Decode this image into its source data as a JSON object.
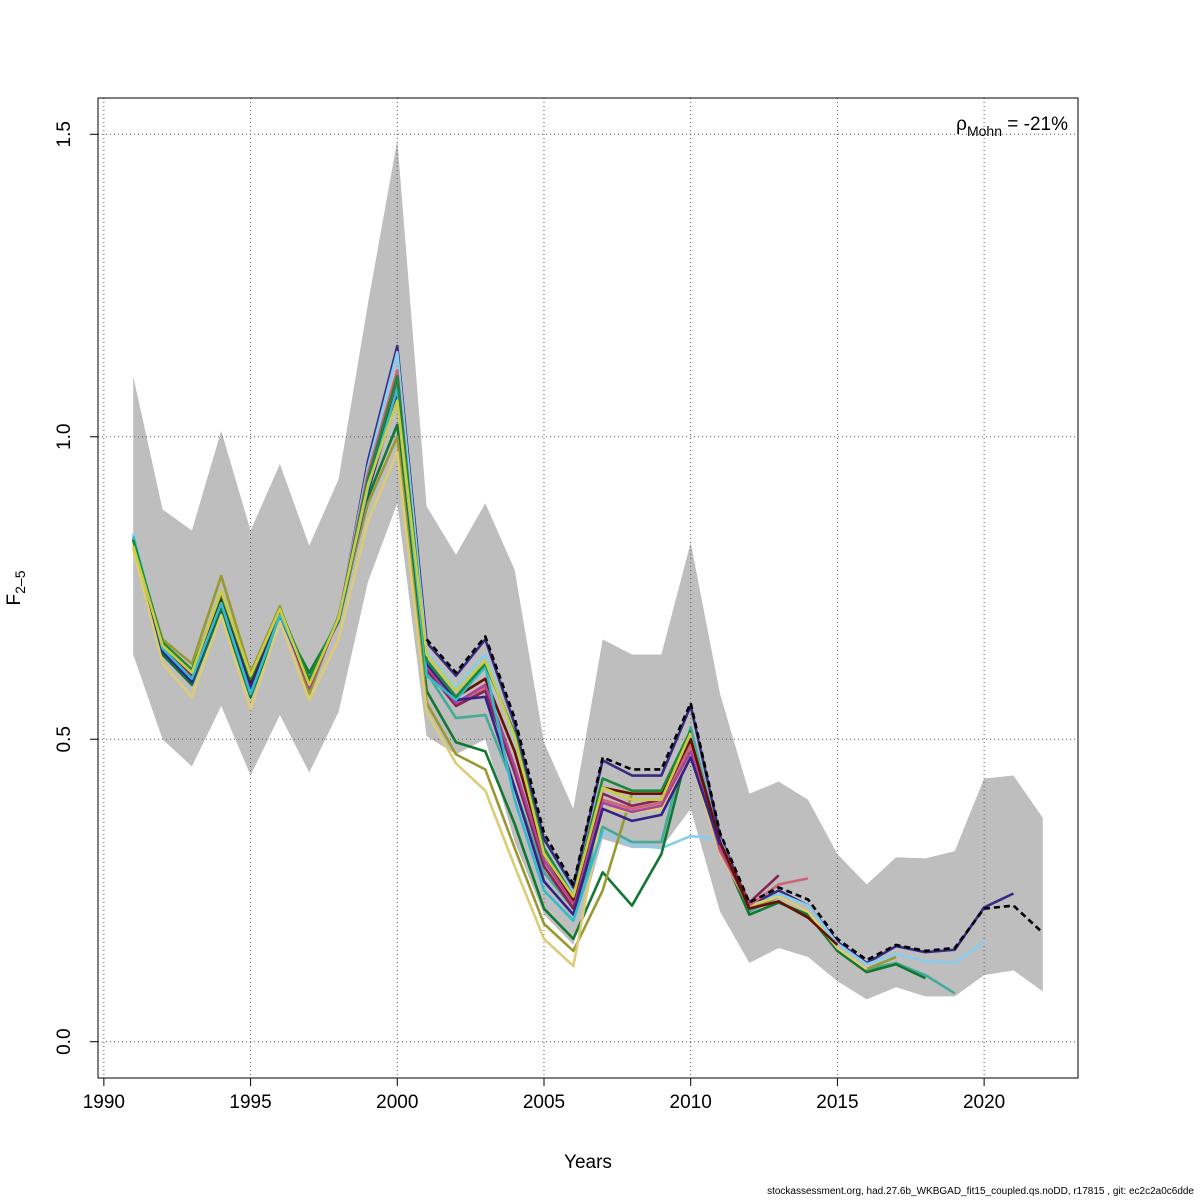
{
  "chart_data": {
    "type": "line",
    "title": "",
    "xlabel": "Years",
    "ylabel_main": "F",
    "ylabel_sub": "2–5",
    "xlim": [
      1989.8,
      2023.2
    ],
    "ylim": [
      -0.06,
      1.56
    ],
    "x_ticks": [
      1990,
      1995,
      2000,
      2005,
      2010,
      2015,
      2020
    ],
    "y_ticks": [
      0.0,
      0.5,
      1.0,
      1.5
    ],
    "y_tick_labels": [
      "0.0",
      "0.5",
      "1.0",
      "1.5"
    ],
    "grid": true,
    "annotation": {
      "symbol": "ρ",
      "subscript": "Mohn",
      "text": " = -21%",
      "position": "top-right"
    },
    "footer": "stockassessment.org, had.27.6b_WKBGAD_fit15_coupled.qs.noDD, r17815 , git: ec2c2a0c6dde",
    "colors": {
      "band": "#bebebe",
      "grid": "#555555",
      "final": "#000000"
    },
    "confidence_band": {
      "x": [
        1991,
        1992,
        1993,
        1994,
        1995,
        1996,
        1997,
        1998,
        1999,
        2000,
        2001,
        2002,
        2003,
        2004,
        2005,
        2006,
        2007,
        2008,
        2009,
        2010,
        2011,
        2012,
        2013,
        2014,
        2015,
        2016,
        2017,
        2018,
        2019,
        2020,
        2021,
        2022
      ],
      "upper": [
        1.1,
        0.88,
        0.845,
        1.01,
        0.845,
        0.955,
        0.82,
        0.93,
        1.22,
        1.49,
        0.885,
        0.805,
        0.89,
        0.78,
        0.495,
        0.385,
        0.665,
        0.64,
        0.64,
        0.825,
        0.575,
        0.41,
        0.43,
        0.4,
        0.31,
        0.26,
        0.305,
        0.303,
        0.315,
        0.435,
        0.44,
        0.37
      ],
      "lower": [
        0.64,
        0.5,
        0.455,
        0.555,
        0.44,
        0.54,
        0.445,
        0.545,
        0.76,
        0.89,
        0.505,
        0.475,
        0.5,
        0.33,
        0.21,
        0.16,
        0.335,
        0.32,
        0.32,
        0.385,
        0.215,
        0.13,
        0.155,
        0.14,
        0.1,
        0.07,
        0.09,
        0.075,
        0.075,
        0.11,
        0.118,
        0.083
      ]
    },
    "series": [
      {
        "color": "#000000",
        "dash": "6,4",
        "x": [
          2001,
          2002,
          2003,
          2004,
          2005,
          2006,
          2007,
          2008,
          2009,
          2010,
          2011,
          2012,
          2013,
          2014,
          2015,
          2016,
          2017,
          2018,
          2019,
          2020,
          2021,
          2022
        ],
        "values": [
          0.665,
          0.61,
          0.67,
          0.535,
          0.345,
          0.26,
          0.47,
          0.45,
          0.45,
          0.56,
          0.345,
          0.23,
          0.255,
          0.235,
          0.17,
          0.135,
          0.16,
          0.15,
          0.155,
          0.22,
          0.225,
          0.18
        ]
      },
      {
        "color": "#362a82",
        "x": [
          1991,
          1992,
          1993,
          1994,
          1995,
          1996,
          1997,
          1998,
          1999,
          2000,
          2001,
          2002,
          2003,
          2004,
          2005,
          2006,
          2007,
          2008,
          2009,
          2010,
          2011,
          2012,
          2013,
          2014,
          2015,
          2016,
          2017,
          2018,
          2019,
          2020,
          2021
        ],
        "values": [
          0.83,
          0.655,
          0.605,
          0.73,
          0.59,
          0.705,
          0.6,
          0.695,
          0.96,
          1.15,
          0.66,
          0.605,
          0.665,
          0.525,
          0.335,
          0.255,
          0.465,
          0.44,
          0.44,
          0.555,
          0.34,
          0.225,
          0.25,
          0.225,
          0.165,
          0.13,
          0.158,
          0.148,
          0.152,
          0.222,
          0.245
        ]
      },
      {
        "color": "#88ccee",
        "x": [
          1991,
          1992,
          1993,
          1994,
          1995,
          1996,
          1997,
          1998,
          1999,
          2000,
          2001,
          2002,
          2003,
          2004,
          2005,
          2006,
          2007,
          2008,
          2009,
          2010,
          2011,
          2012,
          2013,
          2014,
          2015,
          2016,
          2017,
          2018,
          2019,
          2020
        ],
        "values": [
          0.84,
          0.655,
          0.6,
          0.725,
          0.58,
          0.705,
          0.605,
          0.7,
          0.95,
          1.14,
          0.645,
          0.585,
          0.64,
          0.5,
          0.32,
          0.245,
          0.345,
          0.325,
          0.32,
          0.34,
          0.335,
          0.22,
          0.245,
          0.225,
          0.162,
          0.128,
          0.145,
          0.133,
          0.13,
          0.165
        ]
      },
      {
        "color": "#44aa99",
        "x": [
          1991,
          1992,
          1993,
          1994,
          1995,
          1996,
          1997,
          1998,
          1999,
          2000,
          2001,
          2002,
          2003,
          2004,
          2005,
          2006,
          2007,
          2008,
          2009,
          2010,
          2011,
          2012,
          2013,
          2014,
          2015,
          2016,
          2017,
          2018,
          2019
        ],
        "values": [
          0.835,
          0.645,
          0.595,
          0.72,
          0.575,
          0.7,
          0.6,
          0.7,
          0.92,
          1.1,
          0.61,
          0.535,
          0.54,
          0.42,
          0.28,
          0.22,
          0.355,
          0.33,
          0.33,
          0.52,
          0.325,
          0.215,
          0.24,
          0.215,
          0.155,
          0.12,
          0.13,
          0.11,
          0.08
        ]
      },
      {
        "color": "#117733",
        "x": [
          1991,
          1992,
          1993,
          1994,
          1995,
          1996,
          1997,
          1998,
          1999,
          2000,
          2001,
          2002,
          2003,
          2004,
          2005,
          2006,
          2007,
          2008,
          2009,
          2010,
          2011,
          2012,
          2013,
          2014,
          2015,
          2016,
          2017,
          2018
        ],
        "values": [
          0.83,
          0.64,
          0.59,
          0.715,
          0.57,
          0.7,
          0.61,
          0.695,
          0.9,
          1.02,
          0.58,
          0.495,
          0.48,
          0.36,
          0.22,
          0.17,
          0.28,
          0.225,
          0.31,
          0.5,
          0.32,
          0.21,
          0.23,
          0.21,
          0.15,
          0.115,
          0.128,
          0.105
        ]
      },
      {
        "color": "#999933",
        "x": [
          1991,
          1992,
          1993,
          1994,
          1995,
          1996,
          1997,
          1998,
          1999,
          2000,
          2001,
          2002,
          2003,
          2004,
          2005,
          2006,
          2007,
          2008,
          2009,
          2010,
          2011,
          2012,
          2013,
          2014,
          2015,
          2016,
          2017
        ],
        "values": [
          0.82,
          0.665,
          0.625,
          0.77,
          0.61,
          0.72,
          0.575,
          0.705,
          0.89,
          1.0,
          0.56,
          0.475,
          0.45,
          0.32,
          0.195,
          0.15,
          0.25,
          0.41,
          0.41,
          0.49,
          0.32,
          0.22,
          0.24,
          0.215,
          0.155,
          0.12,
          0.14
        ]
      },
      {
        "color": "#ddcc77",
        "x": [
          1991,
          1992,
          1993,
          1994,
          1995,
          1996,
          1997,
          1998,
          1999,
          2000,
          2001,
          2002,
          2003,
          2004,
          2005,
          2006,
          2007,
          2008,
          2009,
          2010,
          2011,
          2012,
          2013,
          2014,
          2015,
          2016
        ],
        "values": [
          0.815,
          0.625,
          0.57,
          0.705,
          0.55,
          0.695,
          0.565,
          0.665,
          0.86,
          0.975,
          0.545,
          0.46,
          0.415,
          0.29,
          0.17,
          0.125,
          0.385,
          0.38,
          0.385,
          0.47,
          0.31,
          0.225,
          0.24,
          0.215,
          0.155,
          0.12
        ]
      },
      {
        "color": "#cc6677",
        "x": [
          1991,
          1992,
          1993,
          1994,
          1995,
          1996,
          1997,
          1998,
          1999,
          2000,
          2001,
          2002,
          2003,
          2004,
          2005,
          2006,
          2007,
          2008,
          2009,
          2010,
          2011,
          2012,
          2013,
          2014
        ],
        "values": [
          0.83,
          0.655,
          0.61,
          0.74,
          0.605,
          0.715,
          0.59,
          0.7,
          0.94,
          1.11,
          0.62,
          0.56,
          0.585,
          0.45,
          0.3,
          0.225,
          0.4,
          0.385,
          0.395,
          0.49,
          0.315,
          0.225,
          0.26,
          0.27
        ]
      },
      {
        "color": "#882255",
        "x": [
          1991,
          1992,
          1993,
          1994,
          1995,
          1996,
          1997,
          1998,
          1999,
          2000,
          2001,
          2002,
          2003,
          2004,
          2005,
          2006,
          2007,
          2008,
          2009,
          2010,
          2011,
          2012,
          2013
        ],
        "values": [
          0.83,
          0.65,
          0.605,
          0.735,
          0.6,
          0.71,
          0.585,
          0.7,
          0.93,
          1.1,
          0.615,
          0.555,
          0.58,
          0.445,
          0.29,
          0.22,
          0.41,
          0.39,
          0.4,
          0.5,
          0.33,
          0.23,
          0.275
        ]
      },
      {
        "color": "#aa4499",
        "x": [
          1991,
          1992,
          1993,
          1994,
          1995,
          1996,
          1997,
          1998,
          1999,
          2000,
          2001,
          2002,
          2003,
          2004,
          2005,
          2006,
          2007,
          2008,
          2009,
          2010,
          2011,
          2012
        ],
        "values": [
          0.83,
          0.65,
          0.6,
          0.73,
          0.595,
          0.71,
          0.585,
          0.7,
          0.925,
          1.09,
          0.62,
          0.56,
          0.59,
          0.455,
          0.3,
          0.23,
          0.395,
          0.38,
          0.39,
          0.48,
          0.32,
          0.225
        ]
      },
      {
        "color": "#661100",
        "x": [
          1991,
          1992,
          1993,
          1994,
          1995,
          1996,
          1997,
          1998,
          1999,
          2000,
          2001,
          2002,
          2003,
          2004,
          2005,
          2006,
          2007,
          2008,
          2009,
          2010,
          2011,
          2012,
          2013,
          2014,
          2015
        ],
        "values": [
          0.83,
          0.65,
          0.6,
          0.73,
          0.59,
          0.71,
          0.59,
          0.7,
          0.93,
          1.08,
          0.63,
          0.57,
          0.6,
          0.48,
          0.31,
          0.235,
          0.42,
          0.41,
          0.41,
          0.5,
          0.33,
          0.22,
          0.232,
          0.205,
          0.16
        ]
      },
      {
        "color": "#332288",
        "x": [
          1991,
          1992,
          1993,
          1994,
          1995,
          1996,
          1997,
          1998,
          1999,
          2000,
          2001,
          2002,
          2003,
          2004,
          2005,
          2006,
          2007,
          2008,
          2009,
          2010,
          2011
        ],
        "values": [
          0.83,
          0.645,
          0.595,
          0.725,
          0.585,
          0.705,
          0.595,
          0.7,
          0.91,
          1.07,
          0.625,
          0.565,
          0.57,
          0.42,
          0.265,
          0.21,
          0.385,
          0.365,
          0.375,
          0.47,
          0.325
        ]
      },
      {
        "color": "#33bbcc",
        "x": [
          1991,
          1992,
          1993,
          1994,
          1995,
          1996,
          1997,
          1998,
          1999,
          2000,
          2001,
          2002,
          2003,
          2004,
          2005,
          2006,
          2007
        ],
        "values": [
          0.835,
          0.65,
          0.6,
          0.725,
          0.575,
          0.705,
          0.6,
          0.7,
          0.915,
          1.08,
          0.605,
          0.565,
          0.62,
          0.4,
          0.25,
          0.2,
          0.35
        ]
      },
      {
        "color": "#1a8a3a",
        "x": [
          1991,
          1992,
          1993,
          1994,
          1995,
          1996,
          1997,
          1998,
          1999,
          2000,
          2001,
          2002,
          2003,
          2004,
          2005,
          2006,
          2007,
          2008,
          2009,
          2010
        ],
        "values": [
          0.83,
          0.66,
          0.615,
          0.74,
          0.6,
          0.715,
          0.6,
          0.7,
          0.93,
          1.1,
          0.63,
          0.57,
          0.625,
          0.51,
          0.32,
          0.24,
          0.435,
          0.415,
          0.415,
          0.515
        ]
      },
      {
        "color": "#cccc44",
        "x": [
          1991,
          1992,
          1993,
          1994,
          1995,
          1996,
          1997,
          1998,
          1999,
          2000,
          2001,
          2002,
          2003,
          2004,
          2005,
          2006,
          2007,
          2008,
          2009,
          2010
        ],
        "values": [
          0.82,
          0.655,
          0.61,
          0.745,
          0.605,
          0.715,
          0.59,
          0.7,
          0.92,
          1.06,
          0.64,
          0.58,
          0.63,
          0.505,
          0.31,
          0.24,
          0.42,
          0.4,
          0.4,
          0.51
        ]
      }
    ]
  }
}
